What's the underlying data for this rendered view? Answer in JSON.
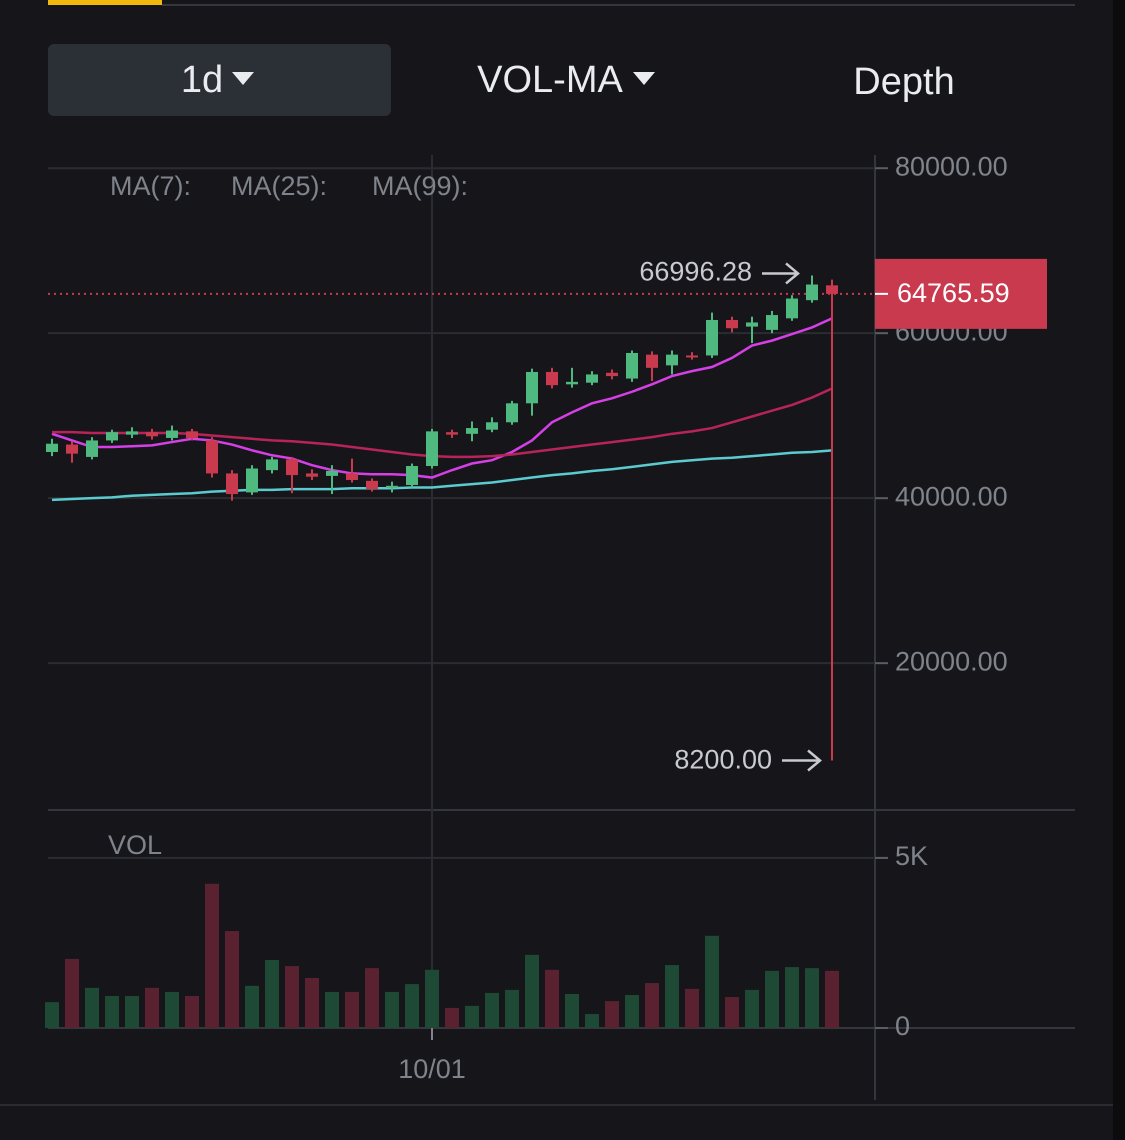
{
  "tabs": [
    "1d",
    "VOL-MA",
    "Depth"
  ],
  "chart_data": {
    "type": "candlestick",
    "categories": [
      null,
      null,
      null,
      null,
      null,
      null,
      null,
      null,
      null,
      null,
      null,
      null,
      null,
      null,
      null,
      null,
      null,
      null,
      null,
      "10/01",
      null,
      null,
      null,
      null,
      null,
      null,
      null,
      null,
      null,
      null,
      null,
      null,
      null,
      null,
      null,
      null,
      null,
      null,
      null,
      null
    ],
    "open": [
      45600,
      46500,
      45000,
      47000,
      47700,
      48000,
      47300,
      48100,
      47000,
      43000,
      40700,
      43400,
      44700,
      43000,
      42700,
      43000,
      42100,
      41300,
      41600,
      43900,
      48000,
      47800,
      48300,
      49200,
      51500,
      55300,
      53800,
      54000,
      55200,
      54500,
      57400,
      56100,
      57300,
      57300,
      61600,
      60800,
      60400,
      61800,
      64000,
      65800
    ],
    "high": [
      47200,
      46900,
      47400,
      48300,
      48600,
      48400,
      48800,
      48400,
      47400,
      43400,
      44000,
      45000,
      45000,
      43500,
      44000,
      44800,
      42400,
      42000,
      44200,
      48400,
      48300,
      49300,
      49800,
      51800,
      55700,
      55800,
      55800,
      55400,
      55600,
      57900,
      57800,
      57900,
      57700,
      62500,
      62000,
      62000,
      62700,
      64600,
      66996.28,
      66500
    ],
    "low": [
      45100,
      44300,
      44700,
      46700,
      47300,
      47100,
      47000,
      47000,
      42500,
      39700,
      40400,
      43000,
      40600,
      42200,
      40500,
      41900,
      40800,
      40700,
      41300,
      43600,
      47300,
      46900,
      48000,
      48900,
      50000,
      53300,
      53400,
      53700,
      54400,
      54100,
      54200,
      55000,
      56800,
      57000,
      60100,
      58800,
      60000,
      61500,
      63700,
      8200
    ],
    "close": [
      46600,
      45400,
      47000,
      48000,
      48100,
      47500,
      48200,
      47300,
      43000,
      40500,
      43600,
      44700,
      42800,
      42600,
      43300,
      42200,
      41100,
      41500,
      43900,
      48100,
      47700,
      48500,
      49200,
      51500,
      55300,
      53700,
      54100,
      55000,
      54800,
      57600,
      55800,
      57400,
      57100,
      61600,
      60600,
      61300,
      62200,
      64200,
      65900,
      64765.59
    ],
    "up_color": "#4fb97f",
    "down_color": "#c93a4e",
    "ma_series": [
      {
        "name": "MA(7):",
        "color": "#d63fe6",
        "values": [
          47800,
          47000,
          46200,
          46200,
          46300,
          46400,
          46800,
          47200,
          47000,
          46500,
          45800,
          45200,
          44800,
          44000,
          43400,
          43000,
          42900,
          42900,
          42800,
          42500,
          43400,
          44200,
          44600,
          45600,
          47000,
          49200,
          50400,
          51500,
          52100,
          52900,
          53800,
          54800,
          55400,
          55900,
          57000,
          58500,
          59100,
          59900,
          60700,
          61800
        ]
      },
      {
        "name": "MA(25):",
        "color": "#b8245a",
        "values": [
          48000,
          48000,
          47900,
          47900,
          47900,
          47900,
          47900,
          47800,
          47600,
          47400,
          47200,
          47000,
          46900,
          46700,
          46500,
          46200,
          45900,
          45600,
          45300,
          45100,
          45000,
          45000,
          45100,
          45300,
          45600,
          45900,
          46200,
          46500,
          46800,
          47100,
          47400,
          47800,
          48100,
          48500,
          49200,
          49900,
          50600,
          51300,
          52200,
          53300
        ]
      },
      {
        "name": "MA(99):",
        "color": "#5ccbcf",
        "values": [
          39800,
          39900,
          40000,
          40100,
          40300,
          40400,
          40500,
          40600,
          40800,
          40900,
          41000,
          41000,
          41100,
          41100,
          41100,
          41200,
          41200,
          41200,
          41300,
          41300,
          41500,
          41700,
          41900,
          42200,
          42500,
          42800,
          43000,
          43300,
          43500,
          43800,
          44100,
          44400,
          44600,
          44800,
          44900,
          45100,
          45300,
          45500,
          45600,
          45800
        ]
      }
    ],
    "ylim": [
      2200,
      81600
    ],
    "yticks": [
      {
        "value": 20000,
        "label": "20000.00"
      },
      {
        "value": 40000,
        "label": "40000.00"
      },
      {
        "value": 60000,
        "label": "60000.00"
      },
      {
        "value": 80000,
        "label": "80000.00"
      }
    ],
    "max_marker": 66996.28,
    "min_marker": {
      "value": 8200,
      "label": "8200.00"
    },
    "last_price": 64765.59,
    "volume_title": "VOL",
    "volume": [
      760,
      2030,
      1180,
      940,
      940,
      1180,
      1060,
      940,
      4240,
      2850,
      1240,
      2000,
      1820,
      1470,
      1060,
      1060,
      1760,
      1060,
      1290,
      1710,
      590,
      650,
      1030,
      1120,
      2150,
      1710,
      1000,
      410,
      790,
      970,
      1320,
      1850,
      1150,
      2710,
      910,
      1120,
      1680,
      1790,
      1760,
      1680
    ],
    "volume_up_color": "#1e4a35",
    "volume_down_color": "#5a2230",
    "y2lim": [
      0,
      6350
    ],
    "y2ticks": [
      0,
      {
        "value": 5000,
        "label": "5K"
      }
    ],
    "grid": true
  }
}
